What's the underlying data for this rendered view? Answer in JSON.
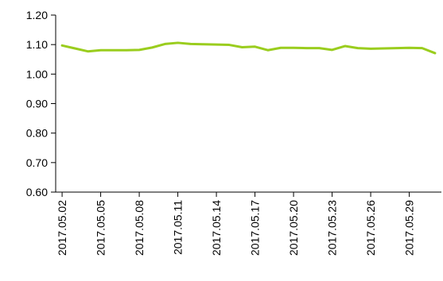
{
  "chart_data": {
    "type": "line",
    "title": "",
    "xlabel": "",
    "ylabel": "",
    "ylim": [
      0.6,
      1.2
    ],
    "y_ticks": [
      "0.60",
      "0.70",
      "0.80",
      "0.90",
      "1.00",
      "1.10",
      "1.20"
    ],
    "x_tick_labels": [
      "2017.05.02",
      "2017.05.05",
      "2017.05.08",
      "2017.05.11",
      "2017.05.14",
      "2017.05.17",
      "2017.05.20",
      "2017.05.23",
      "2017.05.26",
      "2017.05.29"
    ],
    "legend": "none",
    "grid": false,
    "series_color": "#9acd1e",
    "x": [
      "2017.05.02",
      "2017.05.03",
      "2017.05.04",
      "2017.05.05",
      "2017.05.06",
      "2017.05.07",
      "2017.05.08",
      "2017.05.09",
      "2017.05.10",
      "2017.05.11",
      "2017.05.12",
      "2017.05.13",
      "2017.05.14",
      "2017.05.15",
      "2017.05.16",
      "2017.05.17",
      "2017.05.18",
      "2017.05.19",
      "2017.05.20",
      "2017.05.21",
      "2017.05.22",
      "2017.05.23",
      "2017.05.24",
      "2017.05.25",
      "2017.05.26",
      "2017.05.27",
      "2017.05.28",
      "2017.05.29",
      "2017.05.30",
      "2017.05.31"
    ],
    "series": [
      {
        "values": [
          1.097,
          1.087,
          1.077,
          1.081,
          1.081,
          1.081,
          1.082,
          1.09,
          1.102,
          1.106,
          1.102,
          1.101,
          1.1,
          1.099,
          1.091,
          1.093,
          1.081,
          1.089,
          1.089,
          1.088,
          1.088,
          1.082,
          1.095,
          1.088,
          1.086,
          1.087,
          1.088,
          1.089,
          1.088,
          1.071
        ]
      }
    ]
  }
}
